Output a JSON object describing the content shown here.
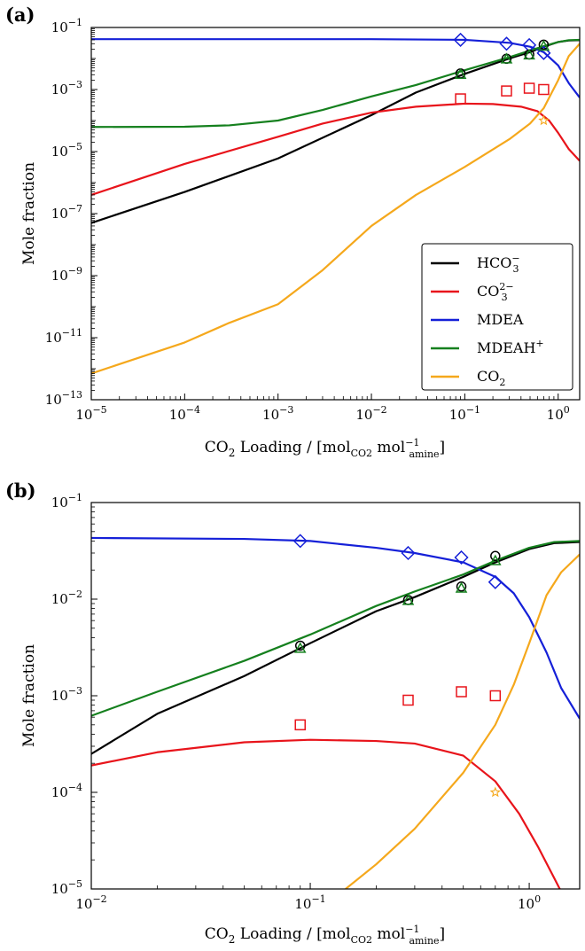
{
  "chart_data": [
    {
      "panel_label": "(a)",
      "type": "line",
      "xscale": "log",
      "yscale": "log",
      "xlim": [
        1e-05,
        1.7
      ],
      "ylim": [
        1e-13,
        0.1
      ],
      "x_ticks": [
        {
          "value": 1e-05,
          "base": "10",
          "exp": "−5"
        },
        {
          "value": 0.0001,
          "base": "10",
          "exp": "−4"
        },
        {
          "value": 0.001,
          "base": "10",
          "exp": "−3"
        },
        {
          "value": 0.01,
          "base": "10",
          "exp": "−2"
        },
        {
          "value": 0.1,
          "base": "10",
          "exp": "−1"
        },
        {
          "value": 1,
          "base": "10",
          "exp": "0"
        }
      ],
      "y_ticks": [
        {
          "value": 1e-13,
          "base": "10",
          "exp": "−13"
        },
        {
          "value": 1e-11,
          "base": "10",
          "exp": "−11"
        },
        {
          "value": 1e-09,
          "base": "10",
          "exp": "−9"
        },
        {
          "value": 1e-07,
          "base": "10",
          "exp": "−7"
        },
        {
          "value": 1e-05,
          "base": "10",
          "exp": "−5"
        },
        {
          "value": 0.001,
          "base": "10",
          "exp": "−3"
        },
        {
          "value": 0.1,
          "base": "10",
          "exp": "−1"
        }
      ],
      "xlabel": {
        "pre": "CO",
        "sub1": "2",
        "mid": " Loading / [mol",
        "sub2": "CO2",
        "mid2": " mol",
        "sup": "−1",
        "sub3": "amine",
        "post": "]"
      },
      "ylabel": "Mole fraction",
      "legend": {
        "placement": "lower-right",
        "entries": [
          {
            "key": "HCO3",
            "base": "HCO",
            "sub": "3",
            "sup": "−",
            "color": "#000000"
          },
          {
            "key": "CO3",
            "base": "CO",
            "sub": "3",
            "sup": "2−",
            "color": "#e8141b"
          },
          {
            "key": "MDEA",
            "base": "MDEA",
            "sub": "",
            "sup": "",
            "color": "#1520d8"
          },
          {
            "key": "MDEAH",
            "base": "MDEAH",
            "sub": "",
            "sup": "+",
            "color": "#15801e"
          },
          {
            "key": "CO2",
            "base": "CO",
            "sub": "2",
            "sup": "",
            "color": "#f5a81c"
          }
        ]
      },
      "series": [
        {
          "key": "HCO3",
          "color": "#000000",
          "points": [
            [
              1e-05,
              5e-08
            ],
            [
              0.0001,
              5e-07
            ],
            [
              0.001,
              6e-06
            ],
            [
              0.01,
              0.00015
            ],
            [
              0.03,
              0.0008
            ],
            [
              0.1,
              0.0032
            ],
            [
              0.3,
              0.01
            ],
            [
              0.5,
              0.016
            ],
            [
              0.7,
              0.024
            ],
            [
              1,
              0.034
            ],
            [
              1.3,
              0.038
            ],
            [
              1.7,
              0.039
            ]
          ]
        },
        {
          "key": "CO3",
          "color": "#e8141b",
          "points": [
            [
              1e-05,
              4e-07
            ],
            [
              0.0001,
              4e-06
            ],
            [
              0.001,
              3e-05
            ],
            [
              0.003,
              8e-05
            ],
            [
              0.01,
              0.00018
            ],
            [
              0.03,
              0.00028
            ],
            [
              0.1,
              0.00035
            ],
            [
              0.2,
              0.00034
            ],
            [
              0.4,
              0.00028
            ],
            [
              0.6,
              0.0002
            ],
            [
              0.8,
              0.0001
            ],
            [
              1,
              4e-05
            ],
            [
              1.3,
              1.2e-05
            ],
            [
              1.7,
              5e-06
            ]
          ]
        },
        {
          "key": "MDEA",
          "color": "#1520d8",
          "points": [
            [
              1e-05,
              0.042
            ],
            [
              0.001,
              0.042
            ],
            [
              0.01,
              0.042
            ],
            [
              0.1,
              0.04
            ],
            [
              0.3,
              0.032
            ],
            [
              0.5,
              0.024
            ],
            [
              0.7,
              0.016
            ],
            [
              1,
              0.006
            ],
            [
              1.3,
              0.0016
            ],
            [
              1.7,
              0.00055
            ]
          ]
        },
        {
          "key": "MDEAH",
          "color": "#15801e",
          "points": [
            [
              1e-05,
              6.2e-05
            ],
            [
              0.0001,
              6.3e-05
            ],
            [
              0.0003,
              7e-05
            ],
            [
              0.001,
              0.0001
            ],
            [
              0.003,
              0.00022
            ],
            [
              0.01,
              0.0006
            ],
            [
              0.03,
              0.0014
            ],
            [
              0.1,
              0.0042
            ],
            [
              0.3,
              0.011
            ],
            [
              0.5,
              0.018
            ],
            [
              0.7,
              0.025
            ],
            [
              1,
              0.034
            ],
            [
              1.3,
              0.039
            ],
            [
              1.7,
              0.04
            ]
          ]
        },
        {
          "key": "CO2",
          "color": "#f5a81c",
          "points": [
            [
              1e-05,
              7e-13
            ],
            [
              0.0001,
              7e-12
            ],
            [
              0.0003,
              3e-11
            ],
            [
              0.001,
              1.2e-10
            ],
            [
              0.003,
              1.5e-09
            ],
            [
              0.01,
              4e-08
            ],
            [
              0.03,
              4e-07
            ],
            [
              0.1,
              3.2e-06
            ],
            [
              0.3,
              2.5e-05
            ],
            [
              0.5,
              8e-05
            ],
            [
              0.7,
              0.00025
            ],
            [
              1,
              0.002
            ],
            [
              1.3,
              0.012
            ],
            [
              1.7,
              0.03
            ]
          ]
        }
      ],
      "markers": [
        {
          "key": "MDEA",
          "shape": "diamond",
          "color": "#1520d8",
          "points": [
            [
              0.09,
              0.04
            ],
            [
              0.28,
              0.03
            ],
            [
              0.49,
              0.027
            ],
            [
              0.7,
              0.015
            ]
          ]
        },
        {
          "key": "HCO3",
          "shape": "circle",
          "color": "#000000",
          "points": [
            [
              0.09,
              0.0033
            ],
            [
              0.28,
              0.0098
            ],
            [
              0.49,
              0.0135
            ],
            [
              0.7,
              0.028
            ]
          ]
        },
        {
          "key": "MDEAH",
          "shape": "triangle",
          "color": "#15801e",
          "points": [
            [
              0.09,
              0.0031
            ],
            [
              0.28,
              0.0097
            ],
            [
              0.49,
              0.013
            ],
            [
              0.7,
              0.025
            ]
          ]
        },
        {
          "key": "CO3",
          "shape": "square",
          "color": "#e8141b",
          "points": [
            [
              0.09,
              0.0005
            ],
            [
              0.28,
              0.0009
            ],
            [
              0.49,
              0.0011
            ],
            [
              0.7,
              0.001
            ]
          ]
        },
        {
          "key": "CO2",
          "shape": "star",
          "color": "#f5a81c",
          "points": [
            [
              0.7,
              0.0001
            ]
          ]
        }
      ]
    },
    {
      "panel_label": "(b)",
      "type": "line",
      "xscale": "log",
      "yscale": "log",
      "xlim": [
        0.01,
        1.7
      ],
      "ylim": [
        1e-05,
        0.1
      ],
      "x_ticks": [
        {
          "value": 0.01,
          "base": "10",
          "exp": "−2"
        },
        {
          "value": 0.1,
          "base": "10",
          "exp": "−1"
        },
        {
          "value": 1,
          "base": "10",
          "exp": "0"
        }
      ],
      "y_ticks": [
        {
          "value": 1e-05,
          "base": "10",
          "exp": "−5"
        },
        {
          "value": 0.0001,
          "base": "10",
          "exp": "−4"
        },
        {
          "value": 0.001,
          "base": "10",
          "exp": "−3"
        },
        {
          "value": 0.01,
          "base": "10",
          "exp": "−2"
        },
        {
          "value": 0.1,
          "base": "10",
          "exp": "−1"
        }
      ],
      "xlabel": {
        "pre": "CO",
        "sub1": "2",
        "mid": " Loading / [mol",
        "sub2": "CO2",
        "mid2": " mol",
        "sup": "−1",
        "sub3": "amine",
        "post": "]"
      },
      "ylabel": "Mole fraction",
      "series": [
        {
          "key": "HCO3",
          "color": "#000000",
          "points": [
            [
              0.01,
              0.00025
            ],
            [
              0.02,
              0.00065
            ],
            [
              0.05,
              0.0016
            ],
            [
              0.1,
              0.0035
            ],
            [
              0.2,
              0.0075
            ],
            [
              0.3,
              0.0105
            ],
            [
              0.5,
              0.017
            ],
            [
              0.7,
              0.024
            ],
            [
              1,
              0.033
            ],
            [
              1.3,
              0.038
            ],
            [
              1.7,
              0.039
            ]
          ]
        },
        {
          "key": "CO3",
          "color": "#e8141b",
          "points": [
            [
              0.01,
              0.00019
            ],
            [
              0.02,
              0.00026
            ],
            [
              0.05,
              0.00033
            ],
            [
              0.1,
              0.00035
            ],
            [
              0.2,
              0.00034
            ],
            [
              0.3,
              0.00032
            ],
            [
              0.5,
              0.00024
            ],
            [
              0.7,
              0.00013
            ],
            [
              0.9,
              6e-05
            ],
            [
              1.1,
              2.7e-05
            ],
            [
              1.3,
              1.3e-05
            ],
            [
              1.45,
              8e-06
            ]
          ]
        },
        {
          "key": "MDEA",
          "color": "#1520d8",
          "points": [
            [
              0.01,
              0.043
            ],
            [
              0.05,
              0.042
            ],
            [
              0.1,
              0.04
            ],
            [
              0.2,
              0.034
            ],
            [
              0.3,
              0.03
            ],
            [
              0.5,
              0.024
            ],
            [
              0.7,
              0.017
            ],
            [
              0.85,
              0.0115
            ],
            [
              1,
              0.0065
            ],
            [
              1.2,
              0.0028
            ],
            [
              1.4,
              0.0012
            ],
            [
              1.7,
              0.00058
            ]
          ]
        },
        {
          "key": "MDEAH",
          "color": "#15801e",
          "points": [
            [
              0.01,
              0.00062
            ],
            [
              0.02,
              0.0011
            ],
            [
              0.05,
              0.0023
            ],
            [
              0.1,
              0.0043
            ],
            [
              0.2,
              0.0085
            ],
            [
              0.3,
              0.012
            ],
            [
              0.5,
              0.018
            ],
            [
              0.7,
              0.025
            ],
            [
              1,
              0.034
            ],
            [
              1.3,
              0.039
            ],
            [
              1.7,
              0.04
            ]
          ]
        },
        {
          "key": "CO2",
          "color": "#f5a81c",
          "points": [
            [
              0.145,
              1e-05
            ],
            [
              0.2,
              1.8e-05
            ],
            [
              0.3,
              4.2e-05
            ],
            [
              0.5,
              0.00016
            ],
            [
              0.7,
              0.0005
            ],
            [
              0.85,
              0.0013
            ],
            [
              1,
              0.0035
            ],
            [
              1.2,
              0.011
            ],
            [
              1.4,
              0.019
            ],
            [
              1.7,
              0.029
            ]
          ]
        }
      ],
      "markers": [
        {
          "key": "MDEA",
          "shape": "diamond",
          "color": "#1520d8",
          "points": [
            [
              0.09,
              0.04
            ],
            [
              0.28,
              0.03
            ],
            [
              0.49,
              0.027
            ],
            [
              0.7,
              0.015
            ]
          ]
        },
        {
          "key": "HCO3",
          "shape": "circle",
          "color": "#000000",
          "points": [
            [
              0.09,
              0.0033
            ],
            [
              0.28,
              0.0098
            ],
            [
              0.49,
              0.0135
            ],
            [
              0.7,
              0.028
            ]
          ]
        },
        {
          "key": "MDEAH",
          "shape": "triangle",
          "color": "#15801e",
          "points": [
            [
              0.09,
              0.0031
            ],
            [
              0.28,
              0.0097
            ],
            [
              0.49,
              0.013
            ],
            [
              0.7,
              0.025
            ]
          ]
        },
        {
          "key": "CO3",
          "shape": "square",
          "color": "#e8141b",
          "points": [
            [
              0.09,
              0.0005
            ],
            [
              0.28,
              0.0009
            ],
            [
              0.49,
              0.0011
            ],
            [
              0.7,
              0.001
            ]
          ]
        },
        {
          "key": "CO2",
          "shape": "star",
          "color": "#f5a81c",
          "points": [
            [
              0.7,
              0.0001
            ]
          ]
        }
      ]
    }
  ]
}
